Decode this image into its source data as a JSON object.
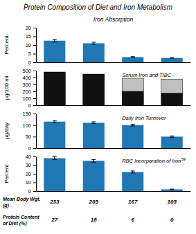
{
  "chart_data": [
    {
      "type": "bar",
      "title": "Protein Composition of Diet and Iron Metabolism",
      "subtitle": "Iron Absorption",
      "ylabel": "Percent",
      "ylim": [
        0,
        20
      ],
      "yticks": [
        0,
        5,
        10,
        15,
        20
      ],
      "values": [
        12.5,
        11.0,
        3.0,
        2.5
      ],
      "errors": [
        0.8,
        0.6,
        0.3,
        0.2
      ],
      "tick_labels": "y"
    },
    {
      "type": "bar",
      "ylabel": "μg/100 ml",
      "ylim": [
        0,
        500
      ],
      "yticks": [
        0,
        100,
        200,
        300,
        400,
        500
      ],
      "stacked": true,
      "series": [
        {
          "color": "#111111",
          "values": [
            480,
            450,
            200,
            175
          ]
        },
        {
          "color": "#c0c0c0",
          "values": [
            null,
            null,
            190,
            200
          ]
        }
      ],
      "annotations": [
        {
          "text": "Serum Iron and TIBC"
        }
      ],
      "tick_labels": "y"
    },
    {
      "type": "bar",
      "ylabel": "μg/day",
      "ylim": [
        0,
        150
      ],
      "yticks": [
        0,
        50,
        100,
        150
      ],
      "values": [
        115,
        110,
        100,
        50
      ],
      "errors": [
        4,
        4,
        4,
        3
      ],
      "annotations": [
        {
          "text": "Daily Iron Turnover"
        }
      ],
      "tick_labels": "y"
    },
    {
      "type": "bar",
      "ylabel": "Percent",
      "ylim": [
        0,
        40
      ],
      "yticks": [
        0,
        10,
        20,
        30,
        40
      ],
      "values": [
        38,
        35,
        22,
        2
      ],
      "errors": [
        1.5,
        1.5,
        1.2,
        0.3
      ],
      "annotations": [
        {
          "text": "RBC Incorporation of Iron",
          "superscript": "59"
        }
      ],
      "categories": [
        "233",
        "205",
        "167",
        "105"
      ],
      "xlabel": [
        "Mean Body Wgt.",
        "(g)"
      ],
      "secondary_categories": [
        "27",
        "18",
        "6",
        "0"
      ],
      "secondary_xlabel": [
        "Protein Content",
        "of Diet (%)"
      ]
    }
  ]
}
